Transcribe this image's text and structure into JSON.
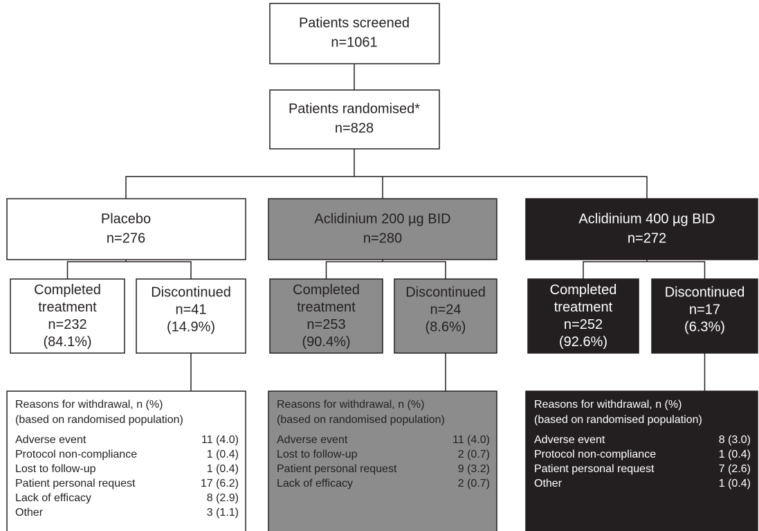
{
  "screened": {
    "label": "Patients screened",
    "n": "n=1061"
  },
  "randomised": {
    "label": "Patients randomised*",
    "n": "n=828"
  },
  "arms": [
    {
      "name": "Placebo",
      "n": "n=276",
      "completed": {
        "lines": [
          "Completed",
          "treatment",
          "n=232",
          "(84.1%)"
        ]
      },
      "discontinued": {
        "lines": [
          "Discontinued",
          "n=41",
          "(14.9%)"
        ]
      },
      "reasons": {
        "title": "Reasons for withdrawal, n (%)",
        "subtitle": "(based on randomised population)",
        "rows": [
          [
            "Adverse event",
            "11 (4.0)"
          ],
          [
            "Protocol non-compliance",
            "1 (0.4)"
          ],
          [
            "Lost to follow-up",
            "1 (0.4)"
          ],
          [
            "Patient personal request",
            "17 (6.2)"
          ],
          [
            "Lack of efficacy",
            "8 (2.9)"
          ],
          [
            "Other",
            "3 (1.1)"
          ]
        ]
      }
    },
    {
      "name": "Aclidinium 200 µg BID",
      "n": "n=280",
      "completed": {
        "lines": [
          "Completed",
          "treatment",
          "n=253",
          "(90.4%)"
        ]
      },
      "discontinued": {
        "lines": [
          "Discontinued",
          "n=24",
          "(8.6%)"
        ]
      },
      "reasons": {
        "title": "Reasons for withdrawal, n (%)",
        "subtitle": "(based on randomised population)",
        "rows": [
          [
            "Adverse event",
            "11 (4.0)"
          ],
          [
            "Lost to follow-up",
            "2 (0.7)"
          ],
          [
            "Patient personal request",
            "9 (3.2)"
          ],
          [
            "Lack of efficacy",
            "2 (0.7)"
          ]
        ]
      }
    },
    {
      "name": "Aclidinium 400 µg BID",
      "n": "n=272",
      "completed": {
        "lines": [
          "Completed",
          "treatment",
          "n=252",
          "(92.6%)"
        ]
      },
      "discontinued": {
        "lines": [
          "Discontinued",
          "n=17",
          "(6.3%)"
        ]
      },
      "reasons": {
        "title": "Reasons for withdrawal, n (%)",
        "subtitle": "(based on randomised population)",
        "rows": [
          [
            "Adverse event",
            "8 (3.0)"
          ],
          [
            "Protocol non-compliance",
            "1 (0.4)"
          ],
          [
            "Patient personal request",
            "7 (2.6)"
          ],
          [
            "Other",
            "1 (0.4)"
          ]
        ]
      }
    }
  ]
}
